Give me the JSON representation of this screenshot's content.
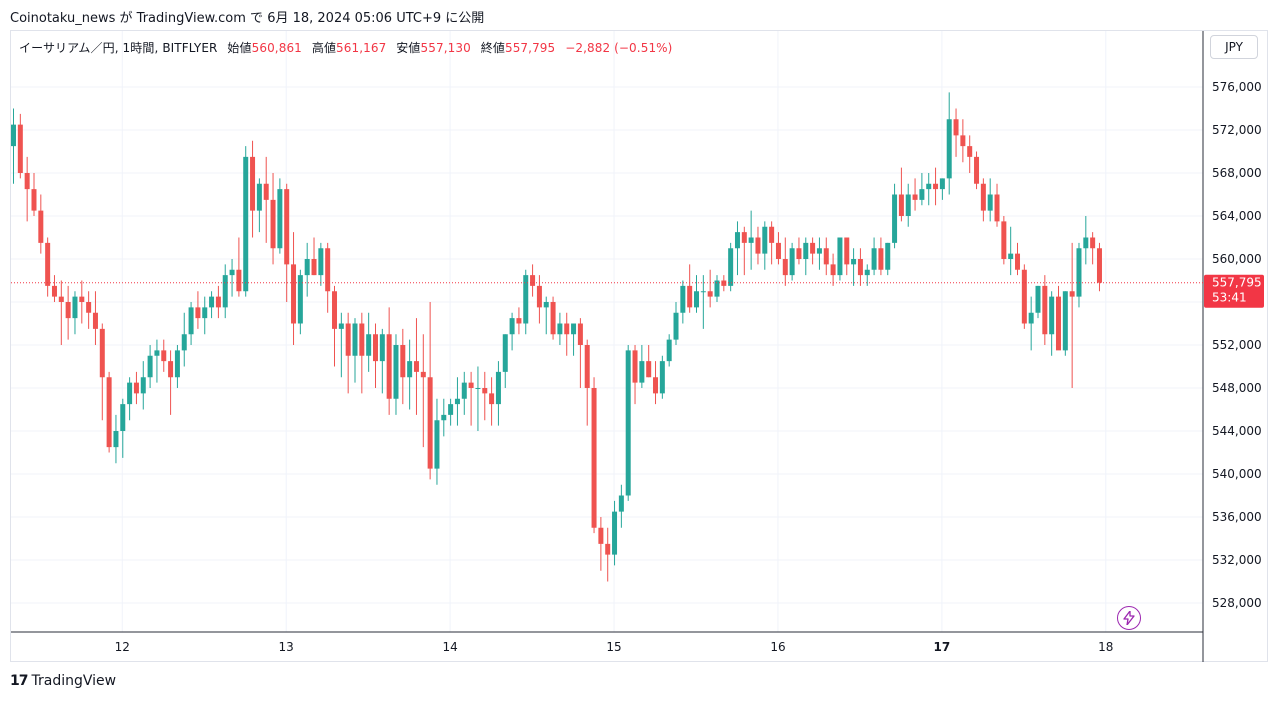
{
  "header": {
    "text": "Coinotaku_news が TradingView.com で 6月 18, 2024 05:06 UTC+9 に公開"
  },
  "legend": {
    "symbol": "イーサリアム／円, 1時間, BITFLYER",
    "open_label": "始値",
    "open": "560,861",
    "high_label": "高値",
    "high": "561,167",
    "low_label": "安値",
    "low": "557,130",
    "close_label": "終値",
    "close": "557,795",
    "change": "−2,882 (−0.51%)"
  },
  "currency": "JPY",
  "price_badge": {
    "price": "557,795",
    "countdown": "53:41"
  },
  "footer": {
    "logo": "17",
    "brand": "TradingView"
  },
  "colors": {
    "up": "#26a69a",
    "down": "#ef5350",
    "grid": "#f0f3fa",
    "axis_text": "#131722",
    "badge": "#f23645"
  },
  "icons": {
    "lightning": "lightning-icon",
    "logo": "tradingview-logo-icon"
  },
  "chart_data": {
    "type": "candlestick",
    "title": "イーサリアム／円, 1時間, BITFLYER",
    "ylim": [
      525000,
      580000
    ],
    "y_ticks": [
      "576,000",
      "572,000",
      "568,000",
      "564,000",
      "560,000",
      "556,000",
      "552,000",
      "548,000",
      "544,000",
      "540,000",
      "536,000",
      "532,000",
      "528,000"
    ],
    "y_tick_values": [
      576000,
      572000,
      568000,
      564000,
      560000,
      556000,
      552000,
      548000,
      544000,
      540000,
      536000,
      532000,
      528000
    ],
    "x_labels": [
      "12",
      "13",
      "14",
      "15",
      "16",
      "17",
      "18"
    ],
    "x_label_bars": [
      16,
      40,
      64,
      88,
      112,
      136,
      160
    ],
    "last_price": 557795,
    "grid": true,
    "candles": [
      [
        570500,
        574000,
        567000,
        572500
      ],
      [
        572500,
        573500,
        567500,
        568000
      ],
      [
        568000,
        569500,
        563500,
        566500
      ],
      [
        566500,
        568000,
        564000,
        564500
      ],
      [
        564500,
        566000,
        560500,
        561500
      ],
      [
        561500,
        562000,
        556500,
        557500
      ],
      [
        557500,
        558500,
        556000,
        556500
      ],
      [
        556500,
        558000,
        552000,
        556000
      ],
      [
        556000,
        557500,
        552500,
        554500
      ],
      [
        554500,
        557000,
        553000,
        556500
      ],
      [
        556500,
        558000,
        554000,
        556000
      ],
      [
        556000,
        557000,
        553500,
        555000
      ],
      [
        555000,
        557000,
        552000,
        553500
      ],
      [
        553500,
        554000,
        545000,
        549000
      ],
      [
        549000,
        549500,
        542000,
        542500
      ],
      [
        542500,
        545500,
        541000,
        544000
      ],
      [
        544000,
        547000,
        541500,
        546500
      ],
      [
        546500,
        549000,
        545000,
        548500
      ],
      [
        548500,
        549500,
        546500,
        547500
      ],
      [
        547500,
        550500,
        546000,
        549000
      ],
      [
        549000,
        552000,
        548000,
        551000
      ],
      [
        551000,
        552500,
        548500,
        551500
      ],
      [
        551500,
        552500,
        549500,
        550500
      ],
      [
        550500,
        551500,
        545500,
        549000
      ],
      [
        549000,
        552000,
        548000,
        551500
      ],
      [
        551500,
        555000,
        550000,
        553000
      ],
      [
        553000,
        556000,
        552000,
        555500
      ],
      [
        555500,
        557000,
        553500,
        554500
      ],
      [
        554500,
        556500,
        553000,
        555500
      ],
      [
        555500,
        557000,
        554500,
        556500
      ],
      [
        556500,
        557500,
        554500,
        555500
      ],
      [
        555500,
        559500,
        554500,
        558500
      ],
      [
        558500,
        560000,
        556500,
        559000
      ],
      [
        559000,
        562000,
        556500,
        557000
      ],
      [
        557000,
        570500,
        556500,
        569500
      ],
      [
        569500,
        571000,
        562000,
        564500
      ],
      [
        564500,
        567500,
        562500,
        567000
      ],
      [
        567000,
        569500,
        561500,
        565500
      ],
      [
        565500,
        568000,
        559500,
        561000
      ],
      [
        561000,
        567500,
        560500,
        566500
      ],
      [
        566500,
        567000,
        556000,
        559500
      ],
      [
        559500,
        562500,
        552000,
        554000
      ],
      [
        554000,
        559000,
        553000,
        558500
      ],
      [
        558500,
        561500,
        556500,
        560000
      ],
      [
        560000,
        562000,
        558500,
        558500
      ],
      [
        558500,
        561500,
        557500,
        561000
      ],
      [
        561000,
        561500,
        555000,
        557000
      ],
      [
        557000,
        557500,
        550000,
        553500
      ],
      [
        553500,
        555000,
        549000,
        554000
      ],
      [
        554000,
        555000,
        547500,
        551000
      ],
      [
        551000,
        554500,
        548500,
        554000
      ],
      [
        554000,
        555000,
        547500,
        551000
      ],
      [
        551000,
        555000,
        549500,
        553000
      ],
      [
        553000,
        554000,
        548000,
        550500
      ],
      [
        550500,
        553500,
        547500,
        553000
      ],
      [
        553000,
        555500,
        545500,
        547000
      ],
      [
        547000,
        553000,
        545500,
        552000
      ],
      [
        552000,
        553500,
        546500,
        549000
      ],
      [
        549000,
        552500,
        546000,
        550500
      ],
      [
        550500,
        554500,
        545500,
        549500
      ],
      [
        549500,
        553000,
        542500,
        549000
      ],
      [
        549000,
        556000,
        539500,
        540500
      ],
      [
        540500,
        547000,
        539000,
        545000
      ],
      [
        545000,
        547000,
        543500,
        545500
      ],
      [
        545500,
        547000,
        544500,
        546500
      ],
      [
        546500,
        549000,
        544500,
        547000
      ],
      [
        547000,
        549500,
        545500,
        548500
      ],
      [
        548500,
        549500,
        544500,
        548000
      ],
      [
        548000,
        550000,
        544000,
        548000
      ],
      [
        548000,
        549500,
        545000,
        547500
      ],
      [
        547500,
        549000,
        544500,
        546500
      ],
      [
        546500,
        550500,
        544500,
        549500
      ],
      [
        549500,
        553000,
        548000,
        553000
      ],
      [
        553000,
        555000,
        551500,
        554500
      ],
      [
        554500,
        555500,
        553000,
        554000
      ],
      [
        554000,
        559000,
        553000,
        558500
      ],
      [
        558500,
        559500,
        556500,
        557500
      ],
      [
        557500,
        558500,
        554000,
        555500
      ],
      [
        555500,
        556500,
        553000,
        556000
      ],
      [
        556000,
        556500,
        552500,
        553000
      ],
      [
        553000,
        555000,
        552000,
        554000
      ],
      [
        554000,
        555000,
        551000,
        553000
      ],
      [
        553000,
        554000,
        551000,
        554000
      ],
      [
        554000,
        554500,
        548000,
        552000
      ],
      [
        552000,
        552500,
        544500,
        548000
      ],
      [
        548000,
        549000,
        534500,
        535000
      ],
      [
        535000,
        536000,
        531000,
        533500
      ],
      [
        533500,
        535000,
        530000,
        532500
      ],
      [
        532500,
        537500,
        531500,
        536500
      ],
      [
        536500,
        539000,
        535000,
        538000
      ],
      [
        538000,
        552000,
        537500,
        551500
      ],
      [
        551500,
        552000,
        546500,
        548500
      ],
      [
        548500,
        552000,
        548000,
        550500
      ],
      [
        550500,
        552000,
        549000,
        549000
      ],
      [
        549000,
        550500,
        546500,
        547500
      ],
      [
        547500,
        551000,
        547000,
        550500
      ],
      [
        550500,
        553000,
        550000,
        552500
      ],
      [
        552500,
        556000,
        552000,
        555000
      ],
      [
        555000,
        558000,
        554000,
        557500
      ],
      [
        557500,
        559500,
        555000,
        555500
      ],
      [
        555500,
        558500,
        555000,
        557000
      ],
      [
        557000,
        558500,
        553500,
        557000
      ],
      [
        557000,
        559000,
        555500,
        556500
      ],
      [
        556500,
        558500,
        556000,
        558000
      ],
      [
        558000,
        558500,
        557000,
        557500
      ],
      [
        557500,
        561500,
        557000,
        561000
      ],
      [
        561000,
        563500,
        558500,
        562500
      ],
      [
        562500,
        563000,
        558500,
        561500
      ],
      [
        561500,
        564500,
        559000,
        562000
      ],
      [
        562000,
        563000,
        559500,
        560500
      ],
      [
        560500,
        563500,
        559000,
        563000
      ],
      [
        563000,
        563500,
        559500,
        561500
      ],
      [
        561500,
        562500,
        559500,
        560000
      ],
      [
        560000,
        562000,
        557500,
        558500
      ],
      [
        558500,
        561500,
        558000,
        561000
      ],
      [
        561000,
        562000,
        559500,
        560000
      ],
      [
        560000,
        562000,
        558500,
        561500
      ],
      [
        561500,
        562000,
        559500,
        560500
      ],
      [
        560500,
        562000,
        559000,
        561000
      ],
      [
        561000,
        562000,
        558500,
        559500
      ],
      [
        559500,
        560500,
        557500,
        558500
      ],
      [
        558500,
        562000,
        558000,
        562000
      ],
      [
        562000,
        562000,
        558500,
        559500
      ],
      [
        559500,
        561000,
        557500,
        560000
      ],
      [
        560000,
        561000,
        557500,
        558500
      ],
      [
        558500,
        559500,
        557500,
        559000
      ],
      [
        559000,
        562000,
        558500,
        561000
      ],
      [
        561000,
        562000,
        558500,
        559000
      ],
      [
        559000,
        561500,
        558500,
        561500
      ],
      [
        561500,
        567000,
        561000,
        566000
      ],
      [
        566000,
        568500,
        563500,
        564000
      ],
      [
        564000,
        567000,
        563000,
        566000
      ],
      [
        566000,
        567500,
        564500,
        565500
      ],
      [
        565500,
        568000,
        565000,
        566500
      ],
      [
        566500,
        568000,
        565000,
        567000
      ],
      [
        567000,
        568500,
        565000,
        566500
      ],
      [
        566500,
        567500,
        565500,
        567500
      ],
      [
        567500,
        575500,
        566000,
        573000
      ],
      [
        573000,
        574000,
        569500,
        571500
      ],
      [
        571500,
        573000,
        569000,
        570500
      ],
      [
        570500,
        571500,
        568000,
        569500
      ],
      [
        569500,
        570000,
        566500,
        567000
      ],
      [
        567000,
        567500,
        563500,
        564500
      ],
      [
        564500,
        567500,
        563500,
        566000
      ],
      [
        566000,
        567000,
        563000,
        563500
      ],
      [
        563500,
        564000,
        559500,
        560000
      ],
      [
        560000,
        563000,
        558500,
        560500
      ],
      [
        560500,
        561500,
        558500,
        559000
      ],
      [
        559000,
        559500,
        553500,
        554000
      ],
      [
        554000,
        556500,
        551500,
        555000
      ],
      [
        555000,
        557500,
        554500,
        557500
      ],
      [
        557500,
        558500,
        552000,
        553000
      ],
      [
        553000,
        557000,
        551000,
        556500
      ],
      [
        556500,
        557500,
        552000,
        551500
      ],
      [
        551500,
        557000,
        551000,
        557000
      ],
      [
        557000,
        561500,
        548000,
        556500
      ],
      [
        556500,
        561500,
        555500,
        561000
      ],
      [
        561000,
        564000,
        559500,
        562000
      ],
      [
        562000,
        562500,
        559500,
        561000
      ],
      [
        561000,
        561500,
        557000,
        557795
      ]
    ]
  }
}
